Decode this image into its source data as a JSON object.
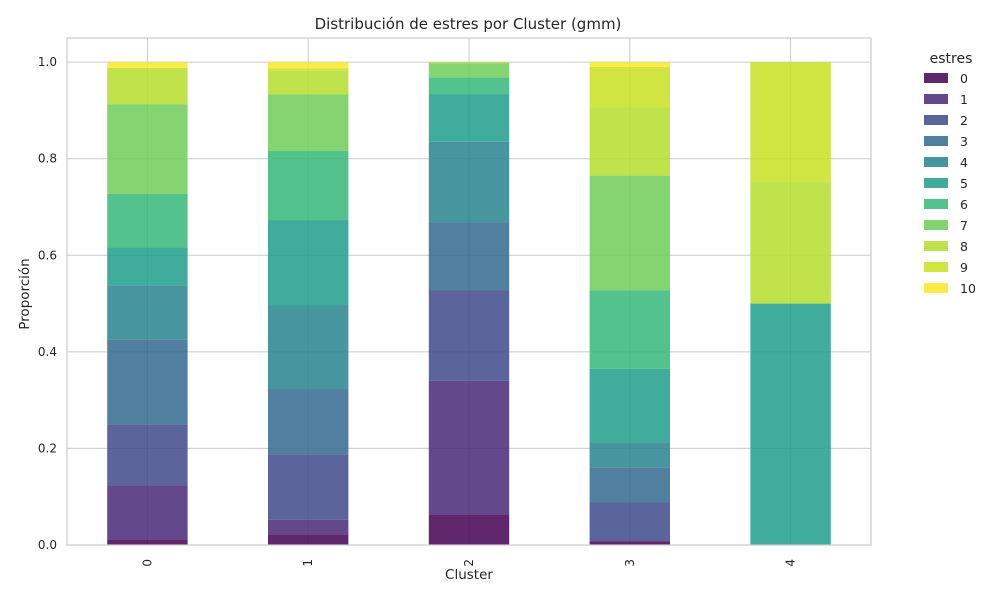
{
  "chart_data": {
    "type": "bar",
    "stacked": true,
    "title": "Distribución de estres por Cluster (gmm)",
    "xlabel": "Cluster",
    "ylabel": "Proporción",
    "categories": [
      "0",
      "1",
      "2",
      "3",
      "4"
    ],
    "ylim": [
      0,
      1.05
    ],
    "yticks": [
      "0.0",
      "0.2",
      "0.4",
      "0.6",
      "0.8",
      "1.0"
    ],
    "grid": true,
    "legend": {
      "title": "estres",
      "placement": "right"
    },
    "series": [
      {
        "name": "0",
        "color": "#440154",
        "values": [
          0.012,
          0.022,
          0.063,
          0.008,
          0.0
        ]
      },
      {
        "name": "1",
        "color": "#482878",
        "values": [
          0.112,
          0.03,
          0.277,
          0.0,
          0.0
        ]
      },
      {
        "name": "2",
        "color": "#3e4989",
        "values": [
          0.126,
          0.136,
          0.188,
          0.08,
          0.0
        ]
      },
      {
        "name": "3",
        "color": "#31688e",
        "values": [
          0.176,
          0.135,
          0.14,
          0.073,
          0.0
        ]
      },
      {
        "name": "4",
        "color": "#26828e",
        "values": [
          0.112,
          0.173,
          0.167,
          0.052,
          0.0
        ]
      },
      {
        "name": "5",
        "color": "#1f9e89",
        "values": [
          0.078,
          0.177,
          0.098,
          0.152,
          0.5
        ]
      },
      {
        "name": "6",
        "color": "#35b779",
        "values": [
          0.111,
          0.143,
          0.035,
          0.162,
          0.0
        ]
      },
      {
        "name": "7",
        "color": "#6ece58",
        "values": [
          0.186,
          0.117,
          0.03,
          0.238,
          0.0
        ]
      },
      {
        "name": "8",
        "color": "#b5de2b",
        "values": [
          0.075,
          0.05,
          0.002,
          0.142,
          0.252
        ]
      },
      {
        "name": "9",
        "color": "#c8e020",
        "values": [
          0.0,
          0.004,
          0.0,
          0.083,
          0.248
        ]
      },
      {
        "name": "10",
        "color": "#fde725",
        "values": [
          0.012,
          0.013,
          0.0,
          0.01,
          0.0
        ]
      }
    ]
  }
}
